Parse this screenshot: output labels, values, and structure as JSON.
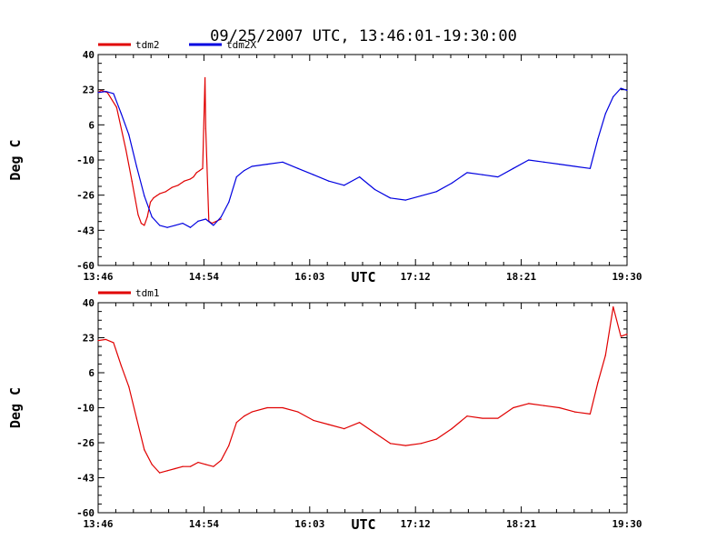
{
  "title": "09/25/2007  UTC, 13:46:01-19:30:00",
  "colors": {
    "tdm2": "#e00000",
    "tdm2X": "#0000e0",
    "tdm1": "#e00000",
    "axis": "#000000",
    "background": "#ffffff"
  },
  "chart_data": [
    {
      "type": "line",
      "ylabel": "Deg C",
      "xlabel": "UTC",
      "ylim": [
        -60,
        40
      ],
      "yticks": [
        "40",
        "23",
        "6",
        "-10",
        "-26",
        "-43",
        "-60"
      ],
      "xticks": [
        "13:46",
        "14:54",
        "16:03",
        "17:12",
        "18:21",
        "19:30"
      ],
      "x_unit": "minutes since 13:46",
      "grid": false,
      "legend_position": "top-left",
      "series": [
        {
          "name": "tdm2",
          "color": "#e00000",
          "x": [
            0,
            2,
            6,
            12,
            18,
            22,
            24,
            26,
            28,
            30,
            32,
            34,
            36,
            38,
            40,
            44,
            48,
            52,
            56,
            60,
            62,
            64,
            66,
            68,
            69.5,
            70,
            72,
            74,
            80
          ],
          "y": [
            22,
            23,
            22,
            15,
            -5,
            -20,
            -28,
            -36,
            -40,
            -41,
            -37,
            -30,
            -28,
            -27,
            -26,
            -25,
            -23,
            -22,
            -20,
            -19,
            -18,
            -16,
            -15,
            -14,
            29,
            5,
            -39,
            -40,
            -38
          ]
        },
        {
          "name": "tdm2X",
          "color": "#0000e0",
          "x": [
            0,
            5,
            10,
            15,
            20,
            25,
            30,
            35,
            40,
            45,
            50,
            55,
            60,
            65,
            70,
            75,
            80,
            85,
            90,
            95,
            100,
            110,
            120,
            130,
            140,
            150,
            160,
            170,
            180,
            190,
            200,
            210,
            220,
            230,
            240,
            250,
            260,
            270,
            280,
            290,
            300,
            310,
            320,
            325,
            330,
            335,
            340,
            344
          ],
          "y": [
            22,
            22.5,
            21.5,
            12,
            2,
            -13,
            -27,
            -37,
            -41,
            -42,
            -41,
            -40,
            -42,
            -39,
            -38,
            -41,
            -37,
            -30,
            -18,
            -15,
            -13,
            -12,
            -11,
            -14,
            -17,
            -20,
            -22,
            -18,
            -24,
            -28,
            -29,
            -27,
            -25,
            -21,
            -16,
            -17,
            -18,
            -14,
            -10,
            -11,
            -12,
            -13,
            -14,
            0,
            12,
            20,
            24,
            23
          ]
        }
      ]
    },
    {
      "type": "line",
      "ylabel": "Deg C",
      "xlabel": "UTC",
      "ylim": [
        -60,
        40
      ],
      "yticks": [
        "40",
        "23",
        "6",
        "-10",
        "-26",
        "-43",
        "-60"
      ],
      "xticks": [
        "13:46",
        "14:54",
        "16:03",
        "17:12",
        "18:21",
        "19:30"
      ],
      "x_unit": "minutes since 13:46",
      "grid": false,
      "legend_position": "top-left",
      "series": [
        {
          "name": "tdm1",
          "color": "#e00000",
          "x": [
            0,
            5,
            10,
            15,
            20,
            25,
            30,
            35,
            40,
            45,
            50,
            55,
            60,
            65,
            70,
            75,
            80,
            85,
            90,
            95,
            100,
            110,
            120,
            130,
            140,
            150,
            160,
            170,
            180,
            190,
            200,
            210,
            220,
            230,
            240,
            250,
            260,
            270,
            280,
            290,
            300,
            310,
            320,
            325,
            330,
            335,
            340,
            344
          ],
          "y": [
            22,
            22.5,
            21,
            10,
            0,
            -15,
            -30,
            -37,
            -41,
            -40,
            -39,
            -38,
            -38,
            -36,
            -37,
            -38,
            -35,
            -28,
            -17,
            -14,
            -12,
            -10,
            -10,
            -12,
            -16,
            -18,
            -20,
            -17,
            -22,
            -27,
            -28,
            -27,
            -25,
            -20,
            -14,
            -15,
            -15,
            -10,
            -8,
            -9,
            -10,
            -12,
            -13,
            2,
            15,
            38,
            24,
            25
          ]
        }
      ]
    }
  ]
}
